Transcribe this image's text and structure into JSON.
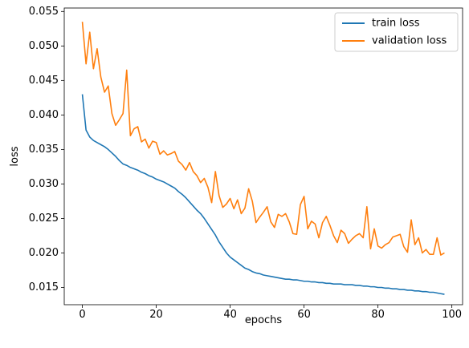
{
  "chart_data": {
    "type": "line",
    "title": "",
    "xlabel": "epochs",
    "ylabel": "loss",
    "xlim": [
      -4.9,
      102.9
    ],
    "ylim": [
      0.0125,
      0.0555
    ],
    "xticks": [
      0,
      20,
      40,
      60,
      80,
      100
    ],
    "xtick_labels": [
      "0",
      "20",
      "40",
      "60",
      "80",
      "100"
    ],
    "yticks": [
      0.015,
      0.02,
      0.025,
      0.03,
      0.035,
      0.04,
      0.045,
      0.05,
      0.055
    ],
    "ytick_labels": [
      "0.015",
      "0.020",
      "0.025",
      "0.030",
      "0.035",
      "0.040",
      "0.045",
      "0.050",
      "0.055"
    ],
    "grid": false,
    "legend": {
      "placement": "top-right"
    },
    "x": [
      0,
      1,
      2,
      3,
      4,
      5,
      6,
      7,
      8,
      9,
      10,
      11,
      12,
      13,
      14,
      15,
      16,
      17,
      18,
      19,
      20,
      21,
      22,
      23,
      24,
      25,
      26,
      27,
      28,
      29,
      30,
      31,
      32,
      33,
      34,
      35,
      36,
      37,
      38,
      39,
      40,
      41,
      42,
      43,
      44,
      45,
      46,
      47,
      48,
      49,
      50,
      51,
      52,
      53,
      54,
      55,
      56,
      57,
      58,
      59,
      60,
      61,
      62,
      63,
      64,
      65,
      66,
      67,
      68,
      69,
      70,
      71,
      72,
      73,
      74,
      75,
      76,
      77,
      78,
      79,
      80,
      81,
      82,
      83,
      84,
      85,
      86,
      87,
      88,
      89,
      90,
      91,
      92,
      93,
      94,
      95,
      96,
      97,
      98
    ],
    "series": [
      {
        "name": "train loss",
        "color": "#1f77b4",
        "values": [
          0.043,
          0.0378,
          0.0368,
          0.0363,
          0.036,
          0.0357,
          0.0354,
          0.035,
          0.0345,
          0.034,
          0.0334,
          0.0329,
          0.0327,
          0.0324,
          0.0322,
          0.032,
          0.0317,
          0.0315,
          0.0312,
          0.031,
          0.0307,
          0.0305,
          0.0303,
          0.03,
          0.0297,
          0.0294,
          0.0289,
          0.0285,
          0.028,
          0.0274,
          0.0268,
          0.0262,
          0.0257,
          0.025,
          0.0242,
          0.0234,
          0.0226,
          0.0216,
          0.0208,
          0.02,
          0.0194,
          0.019,
          0.0186,
          0.0182,
          0.0178,
          0.0176,
          0.0173,
          0.0171,
          0.017,
          0.0168,
          0.0167,
          0.0166,
          0.0165,
          0.0164,
          0.0163,
          0.0162,
          0.0162,
          0.0161,
          0.0161,
          0.016,
          0.0159,
          0.0159,
          0.0158,
          0.0158,
          0.0157,
          0.0157,
          0.0156,
          0.0156,
          0.0155,
          0.0155,
          0.0155,
          0.0154,
          0.0154,
          0.0154,
          0.0153,
          0.0153,
          0.0152,
          0.0152,
          0.0151,
          0.0151,
          0.015,
          0.015,
          0.0149,
          0.0149,
          0.0148,
          0.0148,
          0.0147,
          0.0147,
          0.0146,
          0.0146,
          0.0145,
          0.0145,
          0.0144,
          0.0144,
          0.0143,
          0.0143,
          0.0142,
          0.0141,
          0.014
        ]
      },
      {
        "name": "validation loss",
        "color": "#ff7f0e",
        "values": [
          0.0535,
          0.0474,
          0.052,
          0.0467,
          0.0496,
          0.0455,
          0.0433,
          0.0442,
          0.0402,
          0.0385,
          0.0393,
          0.0402,
          0.0465,
          0.037,
          0.038,
          0.0383,
          0.0361,
          0.0365,
          0.0352,
          0.0362,
          0.036,
          0.0343,
          0.0348,
          0.0342,
          0.0344,
          0.0347,
          0.0333,
          0.0328,
          0.032,
          0.0331,
          0.0318,
          0.0312,
          0.0302,
          0.0308,
          0.0295,
          0.0273,
          0.0318,
          0.0283,
          0.0266,
          0.0271,
          0.0279,
          0.0264,
          0.0277,
          0.0257,
          0.0265,
          0.0293,
          0.0275,
          0.0244,
          0.0252,
          0.0259,
          0.0267,
          0.0245,
          0.0237,
          0.0256,
          0.0253,
          0.0257,
          0.0245,
          0.0228,
          0.0227,
          0.027,
          0.0282,
          0.0235,
          0.0246,
          0.0242,
          0.0222,
          0.0244,
          0.0253,
          0.024,
          0.0225,
          0.0215,
          0.0233,
          0.0228,
          0.0214,
          0.022,
          0.0225,
          0.0228,
          0.0222,
          0.0267,
          0.0206,
          0.0235,
          0.021,
          0.0207,
          0.0212,
          0.0215,
          0.0223,
          0.0225,
          0.0227,
          0.0209,
          0.0201,
          0.0248,
          0.0212,
          0.0222,
          0.02,
          0.0205,
          0.0198,
          0.0198,
          0.0222,
          0.0197,
          0.02
        ]
      }
    ]
  }
}
